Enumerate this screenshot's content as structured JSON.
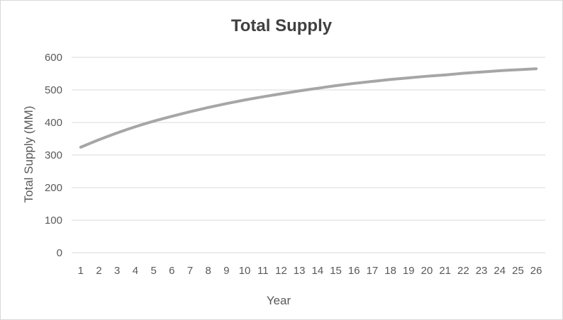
{
  "chart_data": {
    "type": "line",
    "title": "Total Supply",
    "xlabel": "Year",
    "ylabel": "Total Supply (MM)",
    "ylim": [
      0,
      600
    ],
    "yticks": [
      0,
      100,
      200,
      300,
      400,
      500,
      600
    ],
    "grid": true,
    "legend": "none",
    "x": [
      1,
      2,
      3,
      4,
      5,
      6,
      7,
      8,
      9,
      10,
      11,
      12,
      13,
      14,
      15,
      16,
      17,
      18,
      19,
      20,
      21,
      22,
      23,
      24,
      25,
      26
    ],
    "series": [
      {
        "color": "#a6a6a6",
        "values": [
          324,
          347,
          368,
          387,
          404,
          419,
          433,
          446,
          458,
          469,
          479,
          488,
          497,
          505,
          513,
          520,
          526,
          532,
          537,
          542,
          546,
          551,
          555,
          559,
          562,
          565
        ]
      }
    ]
  }
}
